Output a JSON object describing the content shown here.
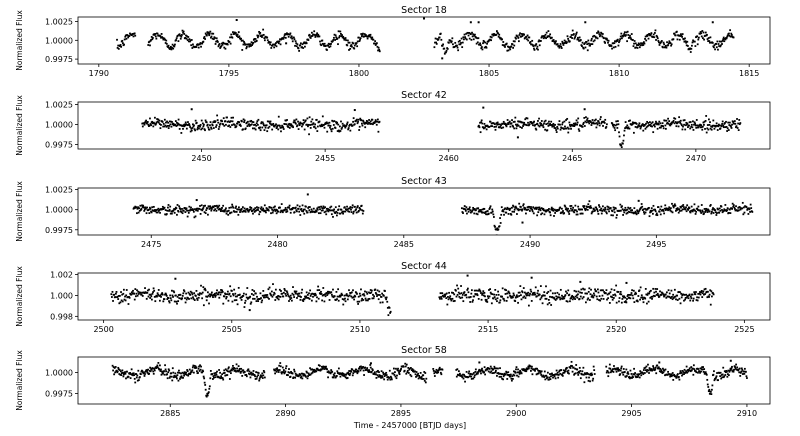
{
  "figure": {
    "xlabel": "Time - 2457000 [BTJD days]",
    "colors": {
      "data": "#000000",
      "axes": "#000000",
      "background": "#ffffff"
    }
  },
  "chart_data": [
    {
      "type": "scatter",
      "title": "Sector 18",
      "ylabel": "Normalized Flux",
      "xlim": [
        1789.2,
        1815.8
      ],
      "ylim": [
        0.99685,
        1.0031
      ],
      "xticks": [
        1790,
        1795,
        1800,
        1805,
        1810,
        1815
      ],
      "xtick_labels": [
        "1790",
        "1795",
        "1800",
        "1805",
        "1810",
        "1815"
      ],
      "yticks": [
        0.9975,
        1.0,
        1.0025
      ],
      "ytick_labels": [
        "0.9975",
        "1.0000",
        "1.0025"
      ],
      "segments": [
        [
          1790.7,
          1791.4
        ],
        [
          1791.9,
          1800.8
        ],
        [
          1802.9,
          1814.4
        ]
      ],
      "variability": {
        "period_days": 1.0,
        "amplitude": 0.0008
      },
      "noise": 0.0003,
      "transits": [
        {
          "center": 1803.3,
          "depth": 0.0022,
          "duration_days": 0.35
        }
      ],
      "outliers": [
        [
          1795.3,
          1.0027
        ],
        [
          1802.5,
          1.0029
        ],
        [
          1804.3,
          1.0024
        ],
        [
          1804.6,
          1.0024
        ],
        [
          1808.7,
          1.0024
        ],
        [
          1813.6,
          1.0024
        ],
        [
          1797.2,
          0.9996
        ],
        [
          1803.2,
          0.9976
        ]
      ]
    },
    {
      "type": "scatter",
      "title": "Sector 42",
      "ylabel": "Normalized Flux",
      "xlim": [
        2445.0,
        2473.0
      ],
      "ylim": [
        0.99695,
        1.0028
      ],
      "xticks": [
        2450,
        2455,
        2460,
        2465,
        2470
      ],
      "xtick_labels": [
        "2450",
        "2455",
        "2460",
        "2465",
        "2470"
      ],
      "yticks": [
        0.9975,
        1.0,
        1.0025
      ],
      "ytick_labels": [
        "0.9975",
        "1.0000",
        "1.0025"
      ],
      "segments": [
        [
          2447.6,
          2457.2
        ],
        [
          2461.2,
          2466.4
        ],
        [
          2466.6,
          2471.8
        ]
      ],
      "variability": {
        "period_days": 3.0,
        "amplitude": 0.00015
      },
      "noise": 0.00035,
      "transits": [
        {
          "center": 2467.0,
          "depth": 0.0026,
          "duration_days": 0.3
        }
      ],
      "outliers": [
        [
          2449.6,
          1.0019
        ],
        [
          2456.2,
          1.0018
        ],
        [
          2461.4,
          1.0021
        ],
        [
          2465.5,
          1.0019
        ],
        [
          2462.8,
          0.9984
        ]
      ]
    },
    {
      "type": "scatter",
      "title": "Sector 43",
      "ylabel": "Normalized Flux",
      "xlim": [
        2472.1,
        2499.5
      ],
      "ylim": [
        0.99685,
        1.0027
      ],
      "xticks": [
        2475,
        2480,
        2485,
        2490,
        2495
      ],
      "xtick_labels": [
        "2475",
        "2480",
        "2485",
        "2490",
        "2495"
      ],
      "yticks": [
        0.9975,
        1.0,
        1.0025
      ],
      "ytick_labels": [
        "0.9975",
        "1.0000",
        "1.0025"
      ],
      "segments": [
        [
          2474.3,
          2483.4
        ],
        [
          2487.3,
          2498.8
        ]
      ],
      "variability": {
        "period_days": 3.0,
        "amplitude": 0.0001
      },
      "noise": 0.0003,
      "transits": [
        {
          "center": 2488.7,
          "depth": 0.0026,
          "duration_days": 0.35
        }
      ],
      "outliers": [
        [
          2481.2,
          1.0019
        ],
        [
          2476.8,
          1.0012
        ],
        [
          2494.3,
          1.0011
        ],
        [
          2489.7,
          0.9984
        ]
      ]
    },
    {
      "type": "scatter",
      "title": "Sector 44",
      "ylabel": "Normalized Flux",
      "xlim": [
        2499.0,
        2526.0
      ],
      "ylim": [
        0.99765,
        1.00215
      ],
      "xticks": [
        2500,
        2505,
        2510,
        2515,
        2520,
        2525
      ],
      "xtick_labels": [
        "2500",
        "2505",
        "2510",
        "2515",
        "2520",
        "2525"
      ],
      "yticks": [
        0.998,
        1.0,
        1.002
      ],
      "ytick_labels": [
        "0.998",
        "1.000",
        "1.002"
      ],
      "segments": [
        [
          2500.3,
          2511.2
        ],
        [
          2513.1,
          2523.8
        ]
      ],
      "variability": {
        "period_days": 2.5,
        "amplitude": 8e-05
      },
      "noise": 0.00035,
      "transits": [
        {
          "center": 2511.15,
          "depth": 0.0017,
          "duration_days": 0.2
        }
      ],
      "outliers": [
        [
          2502.8,
          1.0016
        ],
        [
          2514.2,
          1.0019
        ],
        [
          2516.7,
          1.0017
        ],
        [
          2518.6,
          1.0013
        ],
        [
          2520.4,
          1.0012
        ],
        [
          2505.7,
          0.9986
        ]
      ]
    },
    {
      "type": "scatter",
      "title": "Sector 58",
      "ylabel": "Normalized Flux",
      "xlim": [
        2881.0,
        2911.0
      ],
      "ylim": [
        0.99625,
        1.00185
      ],
      "xticks": [
        2885,
        2890,
        2895,
        2900,
        2905,
        2910
      ],
      "xtick_labels": [
        "2885",
        "2890",
        "2895",
        "2900",
        "2905",
        "2910"
      ],
      "yticks": [
        0.9975,
        1.0
      ],
      "ytick_labels": [
        "0.9975",
        "1.0000"
      ],
      "segments": [
        [
          2882.5,
          2889.1
        ],
        [
          2889.5,
          2896.1
        ],
        [
          2896.4,
          2896.8
        ],
        [
          2897.4,
          2903.4
        ],
        [
          2903.9,
          2910.0
        ]
      ],
      "variability": {
        "period_days": 1.8,
        "amplitude": 0.0004
      },
      "noise": 0.0003,
      "transits": [
        {
          "center": 2886.6,
          "depth": 0.0027,
          "duration_days": 0.3
        },
        {
          "center": 2908.4,
          "depth": 0.0022,
          "duration_days": 0.3
        }
      ],
      "outliers": [
        [
          2898.4,
          1.0012
        ],
        [
          2906.2,
          1.0012
        ],
        [
          2909.3,
          1.0014
        ],
        [
          2893.7,
          1.0011
        ]
      ]
    }
  ]
}
